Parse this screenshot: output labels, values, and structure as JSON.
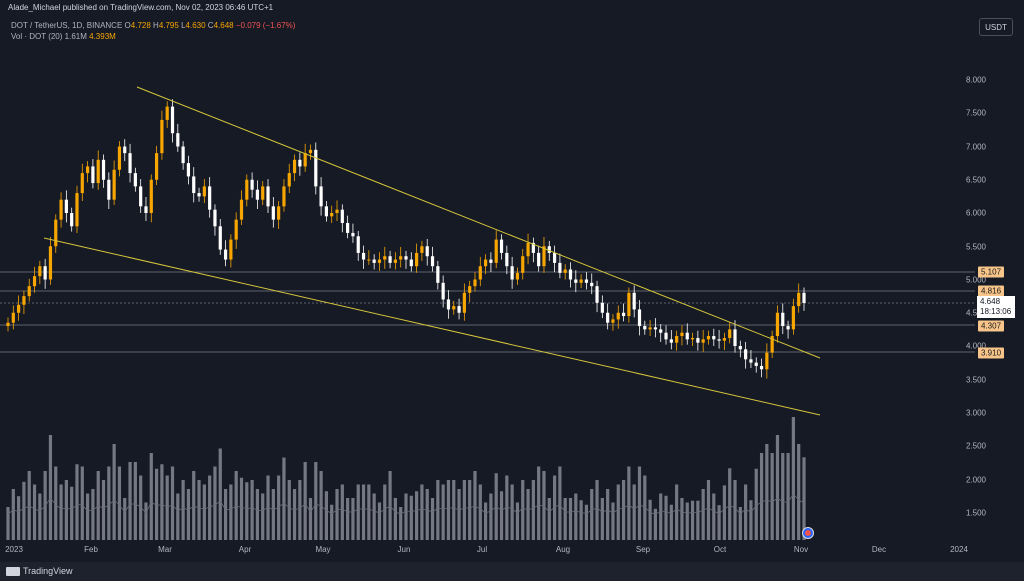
{
  "header": {
    "publisher": "Alade_Michael published on TradingView.com, Nov 02, 2023 06:46 UTC+1",
    "symbol": "DOT / TetherUS, 1D, BINANCE",
    "open_label": "O",
    "open": "4.728",
    "high_label": "H",
    "high": "4.795",
    "low_label": "L",
    "low": "4.630",
    "close_label": "C",
    "close": "4.648",
    "change": "−0.079 (−1.67%)",
    "vol_label": "Vol · DOT (20)",
    "vol_value": "1.61M",
    "vol_ma": "4.393M"
  },
  "currency_button": "USDT",
  "footer": {
    "logo_text": "TradingView"
  },
  "y_axis_ticks": [
    "8.000",
    "7.500",
    "7.000",
    "6.500",
    "6.000",
    "5.500",
    "5.000",
    "4.500",
    "4.000",
    "3.500",
    "3.000",
    "2.500",
    "2.000",
    "1.500"
  ],
  "x_axis_ticks": [
    "2023",
    "Feb",
    "Mar",
    "Apr",
    "May",
    "Jun",
    "Jul",
    "Aug",
    "Sep",
    "Oct",
    "Nov",
    "Dec",
    "2024"
  ],
  "price_tags": {
    "level_5107": "5.107",
    "level_4816": "4.816",
    "level_4307": "4.307",
    "level_3910": "3.910",
    "current_price": "4.648",
    "countdown": "18:13:06"
  },
  "colors": {
    "background": "#161a25",
    "up_candle": "#f7a600",
    "down_candle": "#ffffff",
    "trendline": "#d6c53a",
    "volume": "#9598a1",
    "hline": "#787b86"
  },
  "chart_data": {
    "type": "candlestick",
    "symbol": "DOT / TetherUS",
    "timeframe": "1D",
    "y_range": [
      3.0,
      8.0
    ],
    "closes": [
      4.35,
      4.5,
      4.62,
      4.75,
      4.9,
      5.05,
      5.2,
      5.0,
      5.5,
      5.9,
      6.2,
      6.0,
      5.8,
      6.3,
      6.6,
      6.7,
      6.45,
      6.8,
      6.5,
      6.2,
      6.65,
      7.0,
      6.9,
      6.6,
      6.4,
      6.1,
      6.0,
      6.5,
      6.9,
      7.4,
      7.6,
      7.2,
      7.0,
      6.75,
      6.55,
      6.3,
      6.25,
      6.4,
      6.05,
      5.8,
      5.45,
      5.3,
      5.6,
      5.9,
      6.2,
      6.5,
      6.35,
      6.2,
      6.4,
      6.1,
      5.9,
      6.1,
      6.4,
      6.6,
      6.8,
      6.7,
      6.9,
      6.95,
      6.4,
      6.1,
      5.95,
      6.0,
      6.05,
      5.85,
      5.7,
      5.65,
      5.4,
      5.3,
      5.3,
      5.25,
      5.3,
      5.35,
      5.25,
      5.3,
      5.35,
      5.3,
      5.2,
      5.4,
      5.5,
      5.35,
      5.2,
      4.95,
      4.7,
      4.55,
      4.6,
      4.5,
      4.8,
      4.9,
      5.0,
      5.2,
      5.3,
      5.25,
      5.6,
      5.4,
      5.2,
      5.0,
      5.1,
      5.35,
      5.55,
      5.4,
      5.2,
      5.5,
      5.4,
      5.25,
      5.1,
      5.15,
      5.0,
      4.95,
      5.0,
      4.95,
      4.9,
      4.65,
      4.5,
      4.35,
      4.4,
      4.5,
      4.45,
      4.8,
      4.55,
      4.3,
      4.25,
      4.28,
      4.25,
      4.2,
      4.1,
      4.05,
      4.15,
      4.2,
      4.1,
      4.12,
      4.05,
      4.1,
      4.15,
      4.1,
      4.08,
      4.12,
      4.25,
      4.0,
      3.95,
      3.8,
      3.75,
      3.7,
      3.65,
      3.9,
      4.15,
      4.5,
      4.3,
      4.25,
      4.6,
      4.8,
      4.648
    ]
  }
}
